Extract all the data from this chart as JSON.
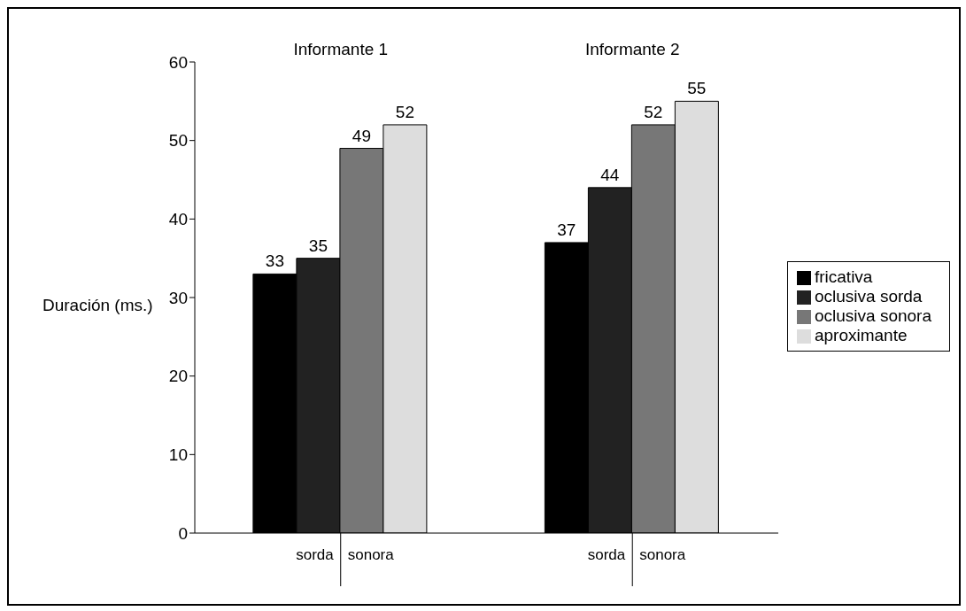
{
  "chart_data": {
    "type": "bar",
    "ylabel": "Duración (ms.)",
    "categories": [
      "Informante 1",
      "Informante 2"
    ],
    "series": [
      {
        "name": "fricativa",
        "color": "#000000",
        "values": [
          33,
          37
        ]
      },
      {
        "name": "oclusiva sorda",
        "color": "#222222",
        "values": [
          35,
          44
        ]
      },
      {
        "name": "oclusiva sonora",
        "color": "#777777",
        "values": [
          49,
          52
        ]
      },
      {
        "name": "aproximante",
        "color": "#dddddd",
        "values": [
          52,
          55
        ]
      }
    ],
    "annotations": [
      "sorda",
      "sonora",
      "sorda",
      "sonora"
    ],
    "ylim": [
      0,
      60
    ],
    "yticks": [
      0,
      10,
      20,
      30,
      40,
      50,
      60
    ],
    "grid": false,
    "legend": "right",
    "data_labels": true
  }
}
